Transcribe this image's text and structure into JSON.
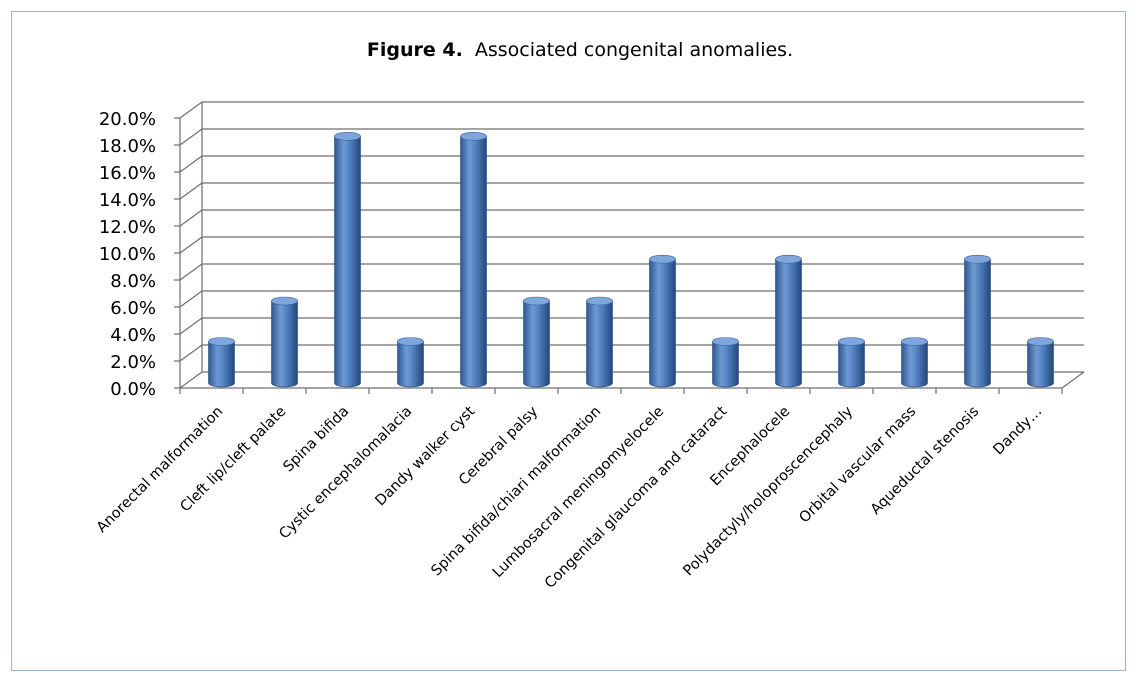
{
  "chart_data": {
    "type": "bar",
    "title_prefix": "Figure 4.",
    "title": "Associated congenital anomalies.",
    "xlabel": "",
    "ylabel": "",
    "categories": [
      "Anorectal malformation",
      "Cleft lip/cleft palate",
      "Spina bifida",
      "Cystic encephalomalacia",
      "Dandy walker cyst",
      "Cerebral palsy",
      "Spina bifida/chiari malformation",
      "Lumbosacral meningomyelocele",
      "Congenital glaucoma and cataract",
      "Encephalocele",
      "Polydactyly/holoproscencephaly",
      "Orbital vascular mass",
      "Aqueductal stenosis",
      "Dandy…"
    ],
    "values": [
      3.0,
      6.0,
      18.2,
      3.0,
      18.2,
      6.0,
      6.0,
      9.1,
      3.0,
      9.1,
      3.0,
      3.0,
      9.1,
      3.0
    ],
    "value_format": "percent",
    "ylim": [
      0,
      20
    ],
    "yticks": [
      "0.0%",
      "2.0%",
      "4.0%",
      "6.0%",
      "8.0%",
      "10.0%",
      "12.0%",
      "14.0%",
      "16.0%",
      "18.0%",
      "20.0%"
    ],
    "grid": true,
    "legend": "none",
    "colors": {
      "bar": "#4f81bd",
      "bar_dark": "#2c4f7c",
      "bar_light": "#8fb4e3",
      "grid": "#6f6f6f"
    }
  }
}
